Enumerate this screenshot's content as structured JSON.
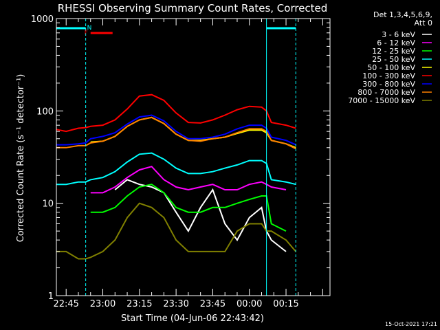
{
  "chart_data": {
    "type": "line",
    "title": "RHESSI Observing Summary Count Rates, Corrected",
    "xlabel": "Start Time (04-Jun-06 22:43:42)",
    "ylabel": "Corrected Count Rate (s⁻¹ detector⁻¹)",
    "y_scale": "log",
    "ylim": [
      1,
      1000
    ],
    "xlim_min": [
      -4,
      108
    ],
    "x_ticks": [
      {
        "v": 0,
        "label": "22:45"
      },
      {
        "v": 15,
        "label": "23:00"
      },
      {
        "v": 30,
        "label": "23:15"
      },
      {
        "v": 45,
        "label": "23:30"
      },
      {
        "v": 60,
        "label": "23:45"
      },
      {
        "v": 75,
        "label": "00:00"
      },
      {
        "v": 90,
        "label": "00:15"
      }
    ],
    "y_ticks": [
      {
        "v": 1,
        "label": "1"
      },
      {
        "v": 10,
        "label": "10"
      },
      {
        "v": 100,
        "label": "100"
      },
      {
        "v": 1000,
        "label": "1000"
      }
    ],
    "legend": {
      "position": "right",
      "header": [
        "Det 1,3,4,5,6,9,",
        "Att 0"
      ]
    },
    "flags": [
      {
        "label": "N",
        "color": "#00ffff",
        "segments": [
          [
            -4,
            8
          ],
          [
            82,
            94
          ]
        ]
      },
      {
        "label": "F",
        "color": "#ff0000",
        "segments": [
          [
            10,
            19
          ]
        ]
      }
    ],
    "vlines": [
      {
        "x": 8,
        "style": "dashed",
        "color": "#00ffff"
      },
      {
        "x": 82,
        "style": "solid",
        "color": "#00ffff"
      },
      {
        "x": 94,
        "style": "dashed",
        "color": "#00ffff"
      }
    ],
    "x": [
      -4,
      0,
      5,
      8,
      10,
      15,
      20,
      25,
      30,
      35,
      40,
      45,
      50,
      55,
      60,
      65,
      70,
      75,
      80,
      82,
      84,
      90,
      94
    ],
    "series": [
      {
        "name": "3 - 6 keV",
        "color": "#ffffff",
        "values": [
          null,
          null,
          null,
          null,
          null,
          null,
          14,
          18,
          16,
          15,
          13,
          8,
          5,
          9,
          14,
          6,
          4,
          7,
          9,
          5,
          4,
          3,
          null
        ]
      },
      {
        "name": "6 - 12 keV",
        "color": "#ff00ff",
        "values": [
          null,
          null,
          null,
          null,
          13,
          13,
          15,
          19,
          23,
          25,
          18,
          15,
          14,
          15,
          16,
          14,
          14,
          16,
          17,
          16,
          15,
          14,
          null
        ]
      },
      {
        "name": "12 - 25 keV",
        "color": "#00ff00",
        "values": [
          null,
          null,
          null,
          null,
          8,
          8,
          9,
          12,
          15,
          16,
          13,
          9,
          8,
          8,
          9,
          9,
          10,
          11,
          12,
          12,
          6,
          5,
          null
        ]
      },
      {
        "name": "25 - 50 keV",
        "color": "#00ffff",
        "values": [
          16,
          16,
          17,
          17,
          18,
          19,
          22,
          28,
          34,
          35,
          30,
          24,
          21,
          21,
          22,
          24,
          26,
          29,
          29,
          27,
          18,
          17,
          16
        ]
      },
      {
        "name": "50 - 100 keV",
        "color": "#ffff00",
        "values": [
          null,
          null,
          null,
          null,
          46,
          47,
          53,
          68,
          80,
          85,
          73,
          56,
          48,
          48,
          50,
          52,
          57,
          62,
          62,
          58,
          48,
          44,
          40
        ]
      },
      {
        "name": "100 - 300 keV",
        "color": "#ff0000",
        "values": [
          63,
          60,
          65,
          66,
          68,
          70,
          80,
          105,
          145,
          150,
          130,
          95,
          75,
          74,
          80,
          90,
          103,
          112,
          110,
          100,
          75,
          70,
          65
        ]
      },
      {
        "name": "300 - 800 keV",
        "color": "#0000ff",
        "values": [
          43,
          43,
          44,
          45,
          50,
          53,
          58,
          72,
          86,
          90,
          78,
          60,
          50,
          50,
          52,
          56,
          64,
          70,
          70,
          65,
          52,
          48,
          43
        ]
      },
      {
        "name": "800 - 7000 keV",
        "color": "#ff8000",
        "values": [
          40,
          40,
          42,
          42,
          45,
          47,
          53,
          68,
          80,
          85,
          73,
          56,
          48,
          47,
          50,
          52,
          58,
          64,
          64,
          60,
          48,
          44,
          39
        ]
      },
      {
        "name": "7000 - 15000 keV",
        "color": "#808000",
        "values": [
          3,
          3,
          2.5,
          2.5,
          2.6,
          3,
          4,
          7,
          10,
          9,
          7,
          4,
          3,
          3,
          3,
          3,
          5,
          6,
          6,
          5,
          5,
          4,
          3
        ]
      }
    ]
  },
  "footer": {
    "timestamp": "15-Oct-2021 17:21"
  }
}
